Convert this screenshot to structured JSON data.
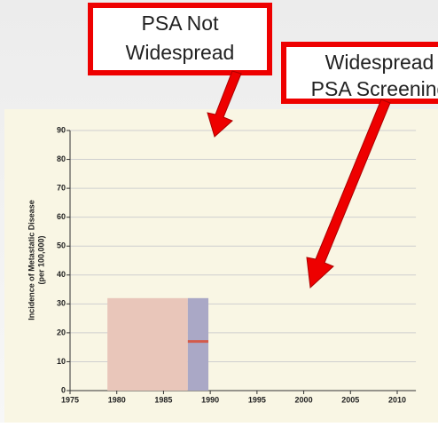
{
  "callouts": [
    {
      "lines": [
        "PSA Not",
        "Widespread"
      ]
    },
    {
      "lines": [
        "Widespread",
        "PSA Screening"
      ]
    }
  ],
  "chart_data": {
    "type": "region",
    "y_label": [
      "Incidence of Metastatic Disease",
      "(per 100,000)"
    ],
    "xlim": [
      1975,
      2012
    ],
    "xticks": [
      1975,
      1980,
      1985,
      1990,
      1995,
      2000,
      2005,
      2010
    ],
    "ylim": [
      0,
      90
    ],
    "yticks": [
      0,
      10,
      20,
      30,
      40,
      50,
      60,
      70,
      80,
      90
    ],
    "grid": true,
    "regions": [
      {
        "x0": 1979,
        "x1": 1987.6,
        "top": 32,
        "color": "#e9c6ba"
      },
      {
        "x0": 1987.6,
        "x1": 1989.8,
        "top": 32,
        "color": "#aaa8c6"
      }
    ],
    "lines": [
      {
        "x": [
          1987.6,
          1989.8
        ],
        "values": [
          17,
          17
        ],
        "color": "#d35a4a"
      }
    ]
  }
}
